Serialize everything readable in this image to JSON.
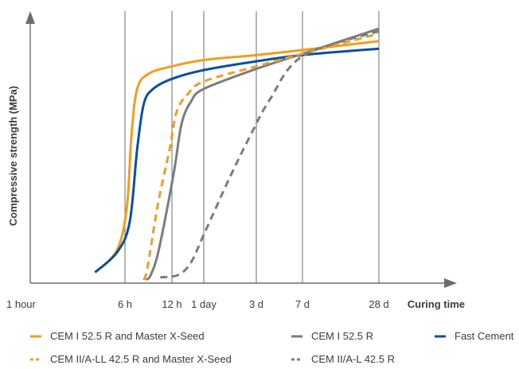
{
  "chart_data": {
    "type": "line",
    "title": "",
    "xlabel": "Curing time",
    "ylabel": "Compressive strength (MPa)",
    "x_scale": "categorical time (non-linear)",
    "grid": "vertical lines at labeled times",
    "y_ticks": "none",
    "categories": [
      "1 hour",
      "6 h",
      "12 h",
      "1 day",
      "3 d",
      "7 d",
      "28 d"
    ],
    "x_pos": [
      0,
      1,
      2,
      3,
      4,
      5,
      6
    ],
    "ylim": [
      0,
      100
    ],
    "colors": {
      "orange": "#f39c1f",
      "gray": "#7a7d80",
      "blue": "#0a4fa0",
      "grid": "#6d6d6d",
      "axis": "#6d6d6d"
    },
    "series": [
      {
        "name": "CEM I 52.5 R and Master X-Seed",
        "color": "#f39c1f",
        "dash": "solid",
        "points": [
          [
            0.62,
            3
          ],
          [
            0.9,
            12
          ],
          [
            1.04,
            29
          ],
          [
            1.14,
            58
          ],
          [
            1.26,
            76
          ],
          [
            1.5,
            82
          ],
          [
            2,
            85
          ],
          [
            3,
            87.5
          ],
          [
            4,
            89.5
          ],
          [
            5,
            91.5
          ],
          [
            6,
            95
          ]
        ]
      },
      {
        "name": "Fast Cement",
        "color": "#0a4fa0",
        "dash": "solid",
        "points": [
          [
            0.62,
            3
          ],
          [
            0.9,
            11
          ],
          [
            1.1,
            23
          ],
          [
            1.26,
            52
          ],
          [
            1.4,
            70
          ],
          [
            1.6,
            76
          ],
          [
            2,
            80
          ],
          [
            3,
            83.5
          ],
          [
            4,
            87
          ],
          [
            5,
            89.5
          ],
          [
            6,
            92
          ]
        ]
      },
      {
        "name": "CEM I 52.5 R",
        "color": "#7a7d80",
        "dash": "solid",
        "points": [
          [
            1.45,
            0
          ],
          [
            1.55,
            2
          ],
          [
            1.72,
            12
          ],
          [
            2.05,
            42
          ],
          [
            2.3,
            62
          ],
          [
            2.6,
            71
          ],
          [
            3,
            76
          ],
          [
            4,
            84
          ],
          [
            5,
            90
          ],
          [
            6,
            100
          ]
        ]
      },
      {
        "name": "CEM II/A-LL 42.5 R and Master X-Seed",
        "color": "#f39c1f",
        "dash": "dashed",
        "points": [
          [
            1.4,
            0
          ],
          [
            1.48,
            5
          ],
          [
            1.7,
            30
          ],
          [
            1.95,
            52
          ],
          [
            2.15,
            67
          ],
          [
            2.5,
            74
          ],
          [
            3,
            79
          ],
          [
            4,
            85
          ],
          [
            5,
            90
          ],
          [
            6,
            98
          ]
        ]
      },
      {
        "name": "CEM II/A-L 42.5 R",
        "color": "#7a7d80",
        "dash": "dashed",
        "points": [
          [
            1.75,
            1
          ],
          [
            2.2,
            2
          ],
          [
            2.6,
            7
          ],
          [
            3,
            18
          ],
          [
            3.5,
            41
          ],
          [
            3.9,
            58
          ],
          [
            4.3,
            72
          ],
          [
            5,
            89
          ],
          [
            6,
            99
          ]
        ]
      }
    ],
    "legend": {
      "placement": "bottom",
      "rows": [
        [
          "CEM I 52.5 R and Master X-Seed",
          "CEM I 52.5 R",
          "Fast Cement"
        ],
        [
          "CEM II/A-LL 42.5 R and Master X-Seed",
          "CEM II/A-L 42.5 R"
        ]
      ]
    }
  }
}
